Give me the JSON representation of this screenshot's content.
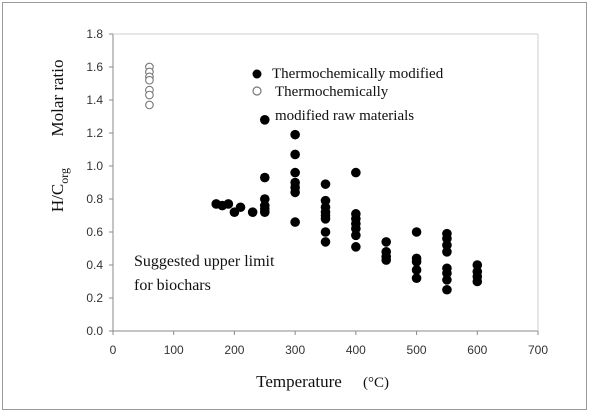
{
  "chart_data": {
    "type": "scatter",
    "ylabel_main": "H/C",
    "ylabel_sub": "org",
    "ylabel_suffix": "Molar ratio",
    "xlabel": "Temperature",
    "xlabel_unit": "(°C)",
    "xlim": [
      0,
      700
    ],
    "ylim": [
      0,
      1.8
    ],
    "xticks": [
      "0",
      "100",
      "200",
      "300",
      "400",
      "500",
      "600",
      "700"
    ],
    "yticks": [
      "0.0",
      "0.2",
      "0.4",
      "0.6",
      "0.8",
      "1.0",
      "1.2",
      "1.4",
      "1.6",
      "1.8"
    ],
    "grid": false,
    "legend_placement": "top-center",
    "legend": [
      {
        "label": "Thermochemically modified",
        "marker": "filled-circle"
      },
      {
        "label_line1": "Thermochemically",
        "label_line2": "modified raw materials",
        "marker": "open-circle"
      }
    ],
    "annotation": {
      "line1": "Suggested upper limit",
      "line2": "for biochars"
    },
    "series": [
      {
        "marker": "filled-circle",
        "color": "#000000",
        "points": [
          [
            170,
            0.77
          ],
          [
            180,
            0.76
          ],
          [
            190,
            0.77
          ],
          [
            200,
            0.72
          ],
          [
            210,
            0.75
          ],
          [
            230,
            0.72
          ],
          [
            250,
            0.93
          ],
          [
            250,
            0.8
          ],
          [
            250,
            0.76
          ],
          [
            250,
            0.74
          ],
          [
            250,
            0.72
          ],
          [
            300,
            1.19
          ],
          [
            300,
            1.07
          ],
          [
            300,
            0.96
          ],
          [
            300,
            0.9
          ],
          [
            300,
            0.87
          ],
          [
            300,
            0.84
          ],
          [
            300,
            0.66
          ],
          [
            350,
            0.89
          ],
          [
            350,
            0.79
          ],
          [
            350,
            0.75
          ],
          [
            350,
            0.72
          ],
          [
            350,
            0.7
          ],
          [
            350,
            0.68
          ],
          [
            350,
            0.6
          ],
          [
            350,
            0.54
          ],
          [
            400,
            0.96
          ],
          [
            400,
            0.71
          ],
          [
            400,
            0.68
          ],
          [
            400,
            0.65
          ],
          [
            400,
            0.62
          ],
          [
            400,
            0.58
          ],
          [
            400,
            0.51
          ],
          [
            450,
            0.54
          ],
          [
            450,
            0.48
          ],
          [
            450,
            0.45
          ],
          [
            450,
            0.43
          ],
          [
            500,
            0.6
          ],
          [
            500,
            0.44
          ],
          [
            500,
            0.42
          ],
          [
            500,
            0.37
          ],
          [
            500,
            0.32
          ],
          [
            550,
            0.59
          ],
          [
            550,
            0.56
          ],
          [
            550,
            0.52
          ],
          [
            550,
            0.48
          ],
          [
            550,
            0.38
          ],
          [
            550,
            0.35
          ],
          [
            550,
            0.31
          ],
          [
            550,
            0.25
          ],
          [
            600,
            0.4
          ],
          [
            600,
            0.36
          ],
          [
            600,
            0.33
          ],
          [
            600,
            0.3
          ],
          [
            250,
            1.28
          ]
        ]
      },
      {
        "marker": "open-circle",
        "color": "#777777",
        "points": [
          [
            60,
            1.6
          ],
          [
            60,
            1.57
          ],
          [
            60,
            1.54
          ],
          [
            60,
            1.52
          ],
          [
            60,
            1.46
          ],
          [
            60,
            1.43
          ],
          [
            60,
            1.37
          ]
        ]
      }
    ]
  }
}
